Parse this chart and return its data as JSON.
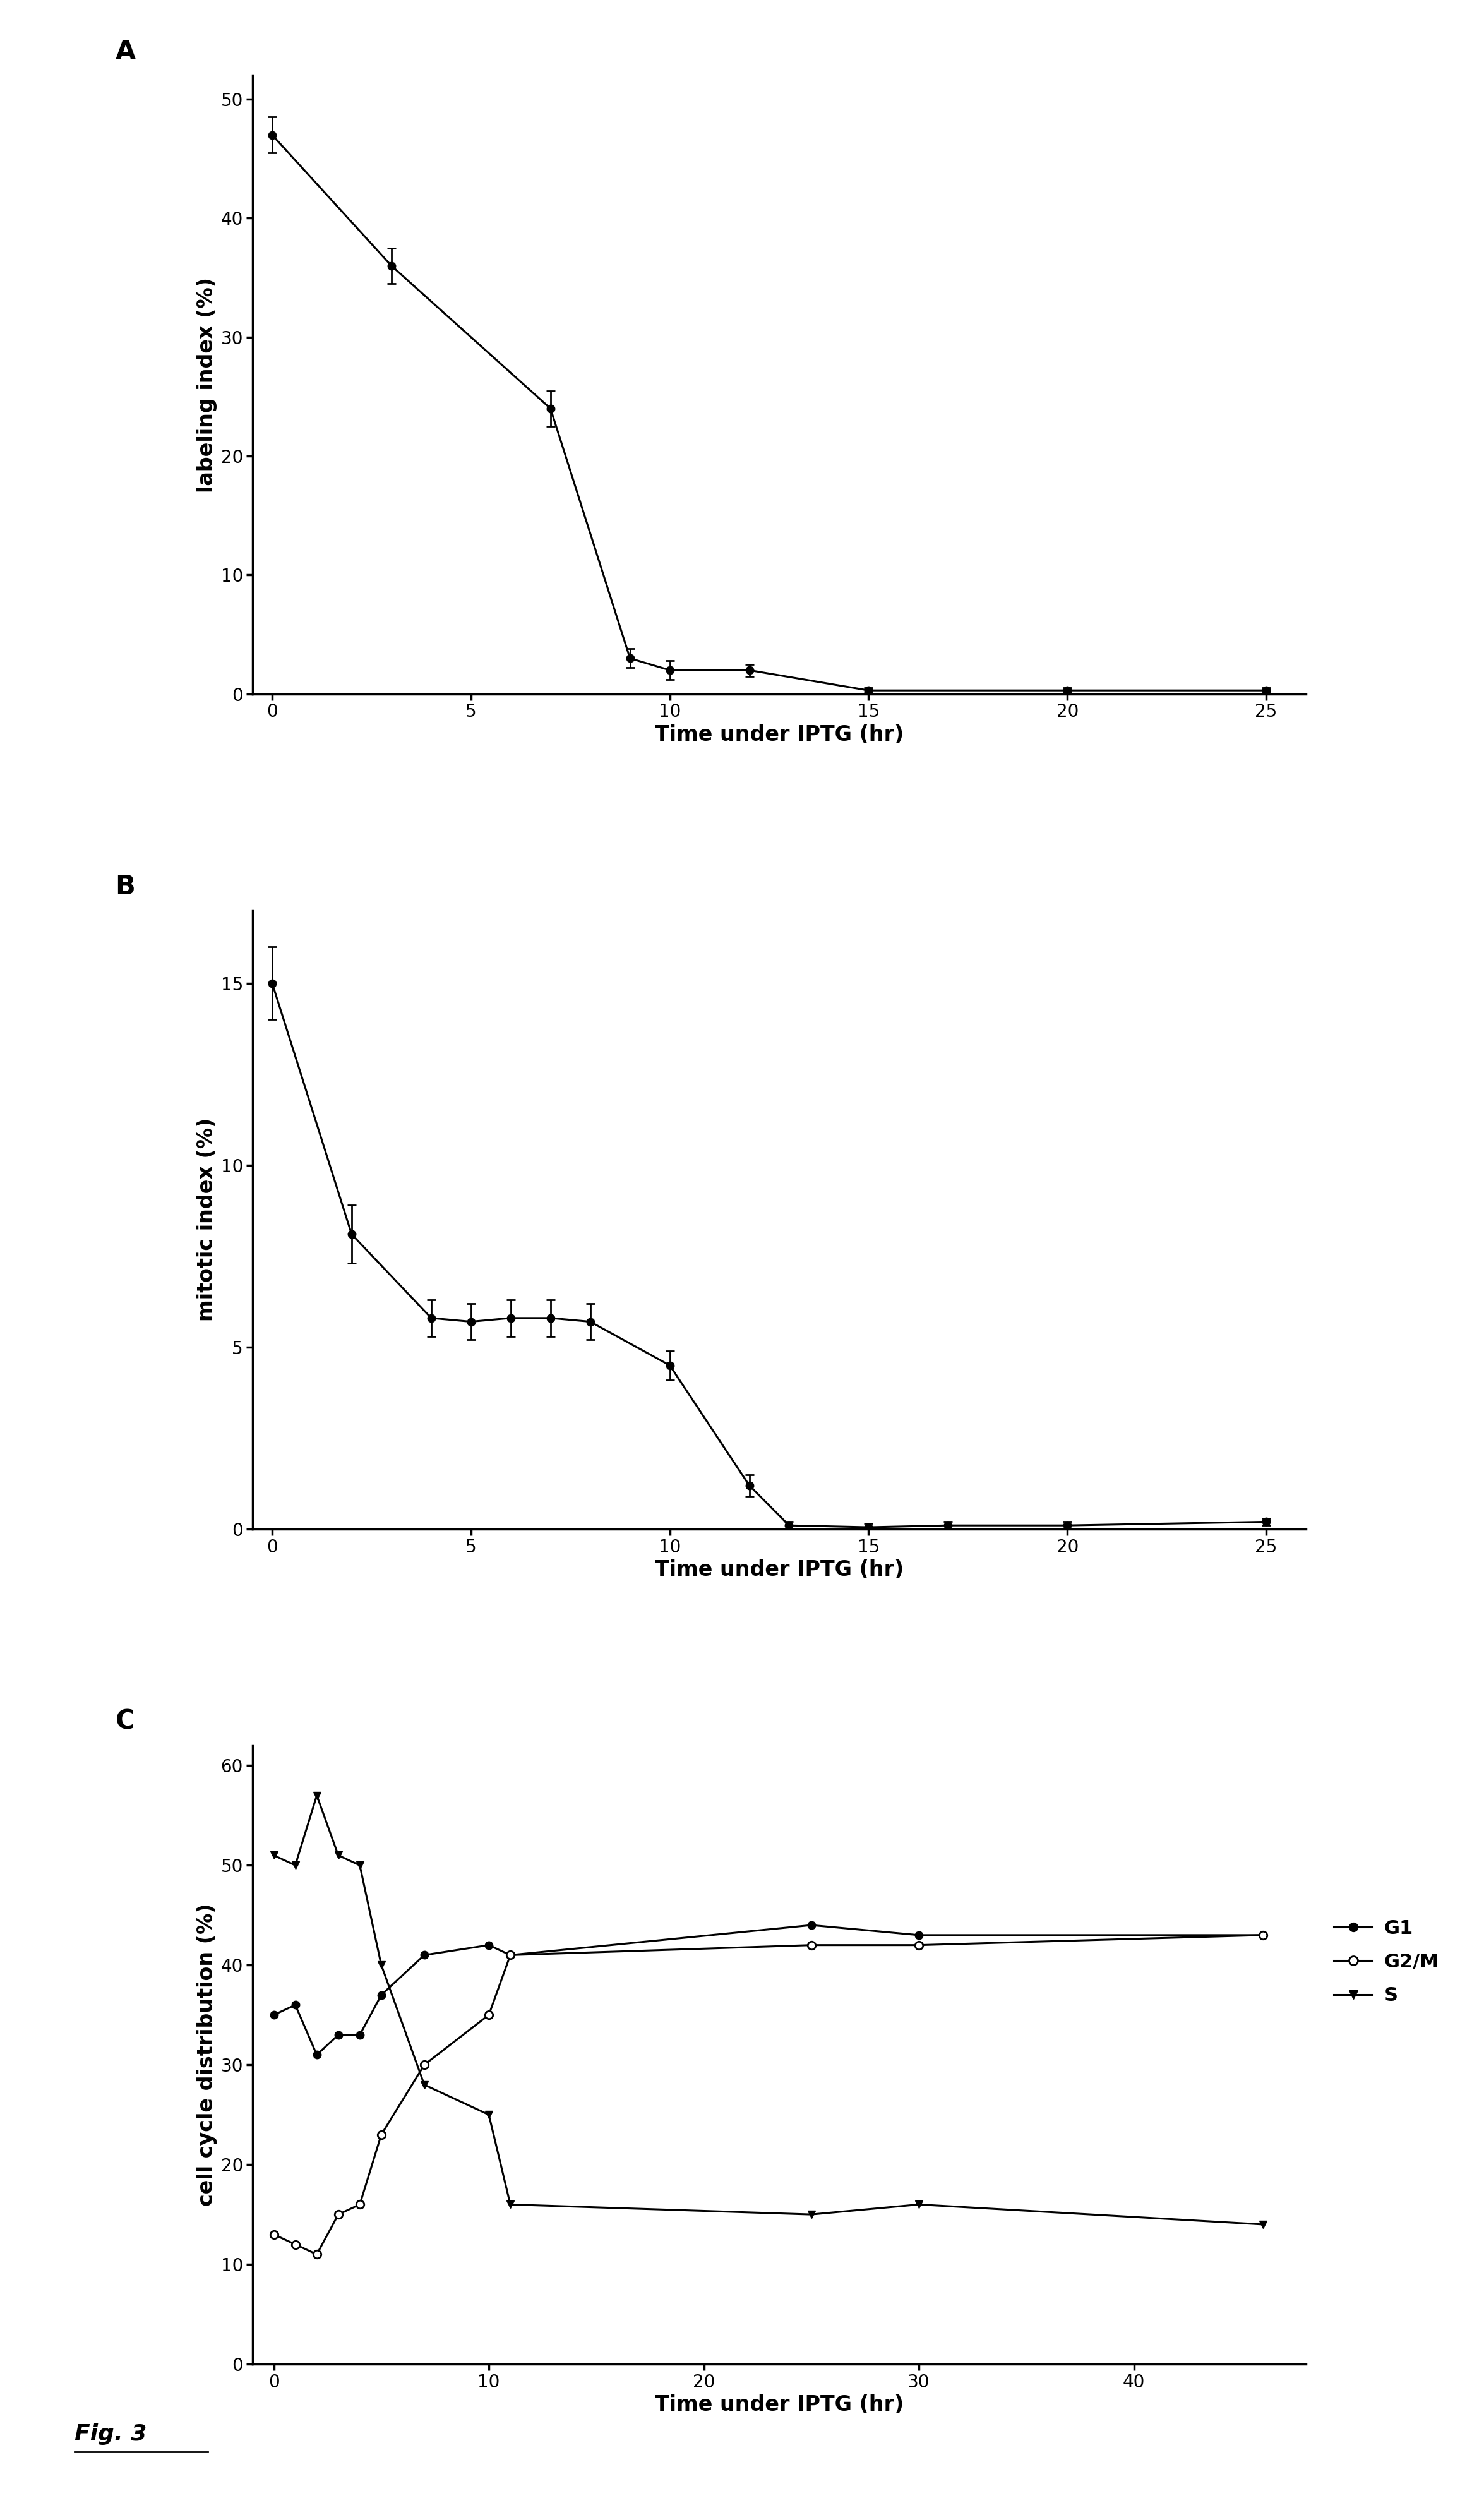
{
  "panel_A": {
    "label": "A",
    "x": [
      0,
      3,
      7,
      9,
      10,
      12,
      15,
      20,
      25
    ],
    "y": [
      47,
      36,
      24,
      3,
      2,
      2,
      0.3,
      0.3,
      0.3
    ],
    "yerr": [
      1.5,
      1.5,
      1.5,
      0.8,
      0.8,
      0.5,
      0.2,
      0.2,
      0.2
    ],
    "xlabel": "Time under IPTG (hr)",
    "ylabel": "labeling index (%)",
    "ylim": [
      0,
      52
    ],
    "xlim": [
      -0.5,
      26
    ],
    "yticks": [
      0,
      10,
      20,
      30,
      40,
      50
    ],
    "xticks": [
      0,
      5,
      10,
      15,
      20,
      25
    ]
  },
  "panel_B": {
    "label": "B",
    "x": [
      0,
      2,
      4,
      5,
      6,
      7,
      8,
      10,
      12,
      13,
      15,
      17,
      20,
      25
    ],
    "y": [
      15,
      8.1,
      5.8,
      5.7,
      5.8,
      5.8,
      5.7,
      4.5,
      1.2,
      0.1,
      0.05,
      0.1,
      0.1,
      0.2
    ],
    "yerr": [
      1.0,
      0.8,
      0.5,
      0.5,
      0.5,
      0.5,
      0.5,
      0.4,
      0.3,
      0.1,
      0.1,
      0.1,
      0.1,
      0.1
    ],
    "xlabel": "Time under IPTG (hr)",
    "ylabel": "mitotic index (%)",
    "ylim": [
      0,
      17
    ],
    "xlim": [
      -0.5,
      26
    ],
    "yticks": [
      0,
      5,
      10,
      15
    ],
    "xticks": [
      0,
      5,
      10,
      15,
      20,
      25
    ]
  },
  "panel_C": {
    "label": "C",
    "G1_x": [
      0,
      1,
      2,
      3,
      4,
      5,
      7,
      10,
      11,
      25,
      30,
      46
    ],
    "G1_y": [
      35,
      36,
      31,
      33,
      33,
      37,
      41,
      42,
      41,
      44,
      43,
      43
    ],
    "G2M_x": [
      0,
      1,
      2,
      3,
      4,
      5,
      7,
      10,
      11,
      25,
      30,
      46
    ],
    "G2M_y": [
      13,
      12,
      11,
      15,
      16,
      23,
      30,
      35,
      41,
      42,
      42,
      43
    ],
    "S_x": [
      0,
      1,
      2,
      3,
      4,
      5,
      7,
      10,
      11,
      25,
      30,
      46
    ],
    "S_y": [
      51,
      50,
      57,
      51,
      50,
      40,
      28,
      25,
      16,
      15,
      16,
      14
    ],
    "xlabel": "Time under IPTG (hr)",
    "ylabel": "cell cycle distribution (%)",
    "ylim": [
      0,
      62
    ],
    "xlim": [
      -1,
      48
    ],
    "yticks": [
      0,
      10,
      20,
      30,
      40,
      50,
      60
    ],
    "xticks": [
      0,
      10,
      20,
      30,
      40
    ]
  },
  "background_color": "#ffffff",
  "line_color": "#000000",
  "marker_size": 9,
  "linewidth": 2.2,
  "fontsize_label": 24,
  "fontsize_tick": 20,
  "fontsize_panel": 30,
  "fontsize_fig": 26,
  "fontsize_legend": 22
}
